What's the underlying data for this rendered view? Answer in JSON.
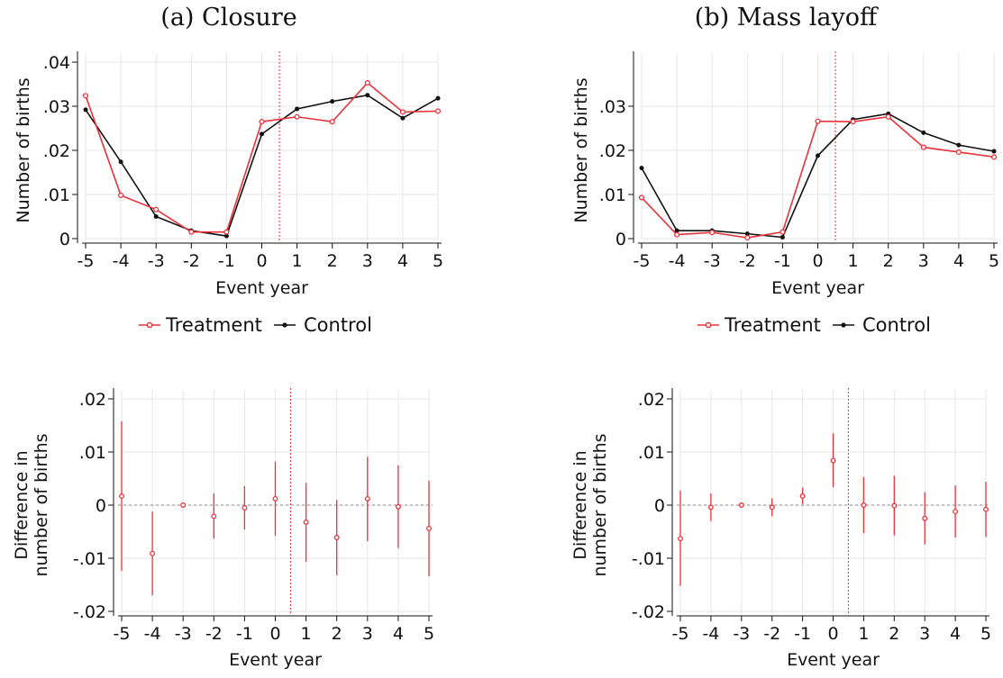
{
  "colors": {
    "treatment": "#e8323a",
    "control": "#111111",
    "grid": "#e6e6e6",
    "event_line": "#e8323a",
    "zero_line": "#888888"
  },
  "x_ticks": [
    -5,
    -4,
    -3,
    -2,
    -1,
    0,
    1,
    2,
    3,
    4,
    5
  ],
  "event_line_x": 0.5,
  "chart_data": [
    {
      "id": "closure-levels",
      "type": "line",
      "title": "(a) Closure",
      "xlabel": "Event year",
      "ylabel": "Number of births",
      "ylim": [
        0,
        0.04
      ],
      "yticks": [
        0,
        0.01,
        0.02,
        0.03,
        0.04
      ],
      "ytick_labels": [
        "0",
        ".01",
        ".02",
        ".03",
        ".04"
      ],
      "grid": true,
      "legend": "bottom",
      "x": [
        -5,
        -4,
        -3,
        -2,
        -1,
        0,
        1,
        2,
        3,
        4,
        5
      ],
      "series": [
        {
          "name": "Treatment",
          "color": "#e8323a",
          "values": [
            0.0324,
            0.0098,
            0.0066,
            0.0015,
            0.0015,
            0.0265,
            0.0276,
            0.0265,
            0.0353,
            0.0287,
            0.0289
          ]
        },
        {
          "name": "Control",
          "color": "#111111",
          "values": [
            0.0292,
            0.0174,
            0.005,
            0.0018,
            0.0006,
            0.0237,
            0.0294,
            0.0311,
            0.0325,
            0.0273,
            0.0318
          ]
        }
      ]
    },
    {
      "id": "masslayoff-levels",
      "type": "line",
      "title": "(b) Mass layoff",
      "xlabel": "Event year",
      "ylabel": "Number of births",
      "ylim": [
        0,
        0.04
      ],
      "yticks": [
        0,
        0.01,
        0.02,
        0.03
      ],
      "ytick_labels": [
        "0",
        ".01",
        ".02",
        ".03"
      ],
      "grid": true,
      "legend": "bottom",
      "x": [
        -5,
        -4,
        -3,
        -2,
        -1,
        0,
        1,
        2,
        3,
        4,
        5
      ],
      "series": [
        {
          "name": "Treatment",
          "color": "#e8323a",
          "values": [
            0.0093,
            0.0009,
            0.0014,
            0.0002,
            0.0015,
            0.0266,
            0.0265,
            0.0276,
            0.0207,
            0.0196,
            0.0185
          ]
        },
        {
          "name": "Control",
          "color": "#111111",
          "values": [
            0.016,
            0.0018,
            0.0018,
            0.0011,
            0.0003,
            0.0188,
            0.027,
            0.0283,
            0.024,
            0.0212,
            0.0198
          ]
        }
      ]
    },
    {
      "id": "closure-diff",
      "type": "scatter",
      "xlabel": "Event year",
      "ylabel": [
        "Difference in",
        "number of births"
      ],
      "ylim": [
        -0.02,
        0.02
      ],
      "yticks": [
        -0.02,
        -0.01,
        0,
        0.01,
        0.02
      ],
      "ytick_labels": [
        "-.02",
        "-.01",
        "0",
        ".01",
        ".02"
      ],
      "grid": true,
      "x": [
        -5,
        -4,
        -3,
        -2,
        -1,
        0,
        1,
        2,
        3,
        4,
        5
      ],
      "values": [
        0.0017,
        -0.0091,
        0.0,
        -0.0021,
        -0.0005,
        0.0012,
        -0.0032,
        -0.0061,
        0.0012,
        -0.0003,
        -0.0044
      ],
      "ci_low": [
        -0.0124,
        -0.017,
        0.0,
        -0.0063,
        -0.0046,
        -0.0058,
        -0.0107,
        -0.0132,
        -0.0068,
        -0.0081,
        -0.0134
      ],
      "ci_high": [
        0.0158,
        -0.0012,
        0.0,
        0.0022,
        0.0036,
        0.0082,
        0.0042,
        0.001,
        0.0091,
        0.0075,
        0.0046
      ]
    },
    {
      "id": "masslayoff-diff",
      "type": "scatter",
      "xlabel": "Event year",
      "ylabel": [
        "Difference in",
        "number of births"
      ],
      "ylim": [
        -0.02,
        0.02
      ],
      "yticks": [
        -0.02,
        -0.01,
        0,
        0.01,
        0.02
      ],
      "ytick_labels": [
        "-.02",
        "-.01",
        "0",
        ".01",
        ".02"
      ],
      "grid": true,
      "x": [
        -5,
        -4,
        -3,
        -2,
        -1,
        0,
        1,
        2,
        3,
        4,
        5
      ],
      "values": [
        -0.0063,
        -0.0004,
        0.0,
        -0.0004,
        0.0017,
        0.0084,
        0.0,
        -0.0001,
        -0.0025,
        -0.0012,
        -0.0008
      ],
      "ci_low": [
        -0.0152,
        -0.003,
        0.0,
        -0.0021,
        0.0002,
        0.0034,
        -0.0053,
        -0.0057,
        -0.0074,
        -0.0061,
        -0.006
      ],
      "ci_high": [
        0.0027,
        0.0022,
        0.0,
        0.0013,
        0.0033,
        0.0135,
        0.0053,
        0.0055,
        0.0024,
        0.0037,
        0.0044
      ]
    }
  ]
}
